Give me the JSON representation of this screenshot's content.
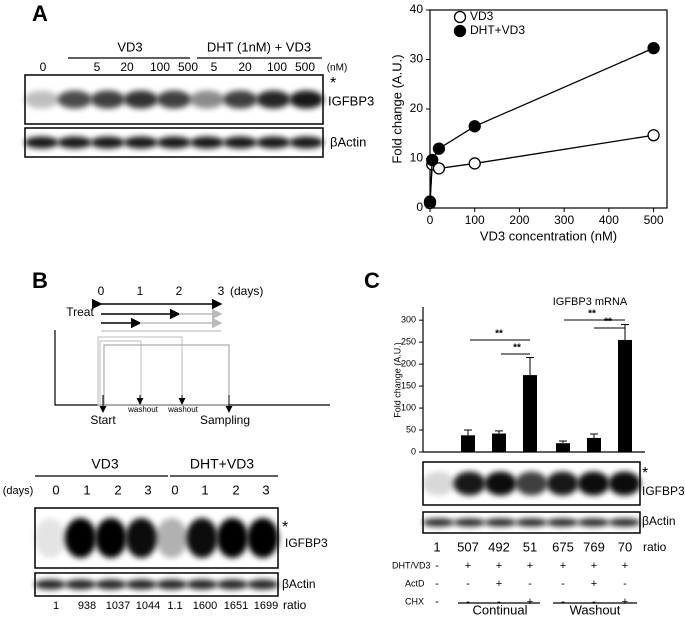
{
  "panel_labels": [
    "A",
    "B",
    "C"
  ],
  "blot_a": {
    "groups": [
      "VD3",
      "DHT (1nM) + VD3"
    ],
    "lanes": [
      0,
      5,
      20,
      100,
      500,
      5,
      20,
      100,
      500
    ],
    "unit": "(nM)",
    "star": "*",
    "target": "IGFBP3",
    "control": "βActin"
  },
  "timeline_b": {
    "days": [
      0,
      1,
      2,
      3
    ],
    "unit": "(days)",
    "treat": "Treat",
    "start": "Start",
    "washout": [
      "washout",
      "washout"
    ],
    "sampling": "Sampling"
  },
  "blot_b": {
    "groups": [
      "VD3",
      "DHT+VD3"
    ],
    "unit": "(days)",
    "lanes": [
      0,
      1,
      2,
      3,
      0,
      1,
      2,
      3
    ],
    "star": "*",
    "target": "IGFBP3",
    "control": "βActin",
    "ratios": [
      1,
      938,
      1037,
      1044,
      1.1,
      1600,
      1651,
      1699
    ],
    "ratio_label": "ratio"
  },
  "blot_c": {
    "star": "*",
    "target": "IGFBP3",
    "control": "βActin",
    "ratios": [
      1,
      507,
      492,
      51,
      675,
      769,
      70
    ],
    "ratio_label": "ratio",
    "treatments": [
      {
        "name": "DHT/VD3",
        "signs": [
          "-",
          "+",
          "+",
          "+",
          "+",
          "+",
          "+"
        ]
      },
      {
        "name": "ActD",
        "signs": [
          "-",
          "-",
          "+",
          "-",
          "-",
          "+",
          "-"
        ]
      },
      {
        "name": "CHX",
        "signs": [
          "-",
          "-",
          "-",
          "+",
          "-",
          "-",
          "+"
        ]
      }
    ],
    "groups": [
      "Continual",
      "Washout"
    ]
  },
  "chart_data": [
    {
      "type": "line",
      "x": [
        0,
        5,
        20,
        100,
        500
      ],
      "series": [
        {
          "name": "VD3",
          "color": "#000000",
          "marker": "open",
          "values": [
            1,
            8.8,
            8,
            9,
            14.7
          ]
        },
        {
          "name": "DHT+VD3",
          "color": "#000000",
          "marker": "filled",
          "values": [
            1.3,
            9.7,
            12,
            16.5,
            32.3
          ]
        }
      ],
      "xlim": [
        0,
        530
      ],
      "xticks": [
        0,
        100,
        200,
        300,
        400,
        500
      ],
      "ylim": [
        0,
        40
      ],
      "yticks": [
        0,
        10,
        20,
        30,
        40
      ],
      "xlabel": "VD3 concentration (nM)",
      "ylabel": "Fold change (A.U.)"
    },
    {
      "type": "bar",
      "title": "IGFBP3 mRNA",
      "categories": [
        null,
        null,
        null,
        null,
        null,
        null,
        null
      ],
      "values": [
        1,
        38,
        42,
        175,
        20,
        32,
        255
      ],
      "errors": [
        0,
        12,
        6,
        40,
        5,
        9,
        35
      ],
      "color": "#000000",
      "ylim": [
        0,
        330
      ],
      "yticks": [
        0,
        50,
        100,
        150,
        200,
        250,
        300
      ],
      "ylabel": "Fold change (A.U.)",
      "annotations": [
        "**",
        "**",
        "**",
        "**"
      ]
    }
  ]
}
